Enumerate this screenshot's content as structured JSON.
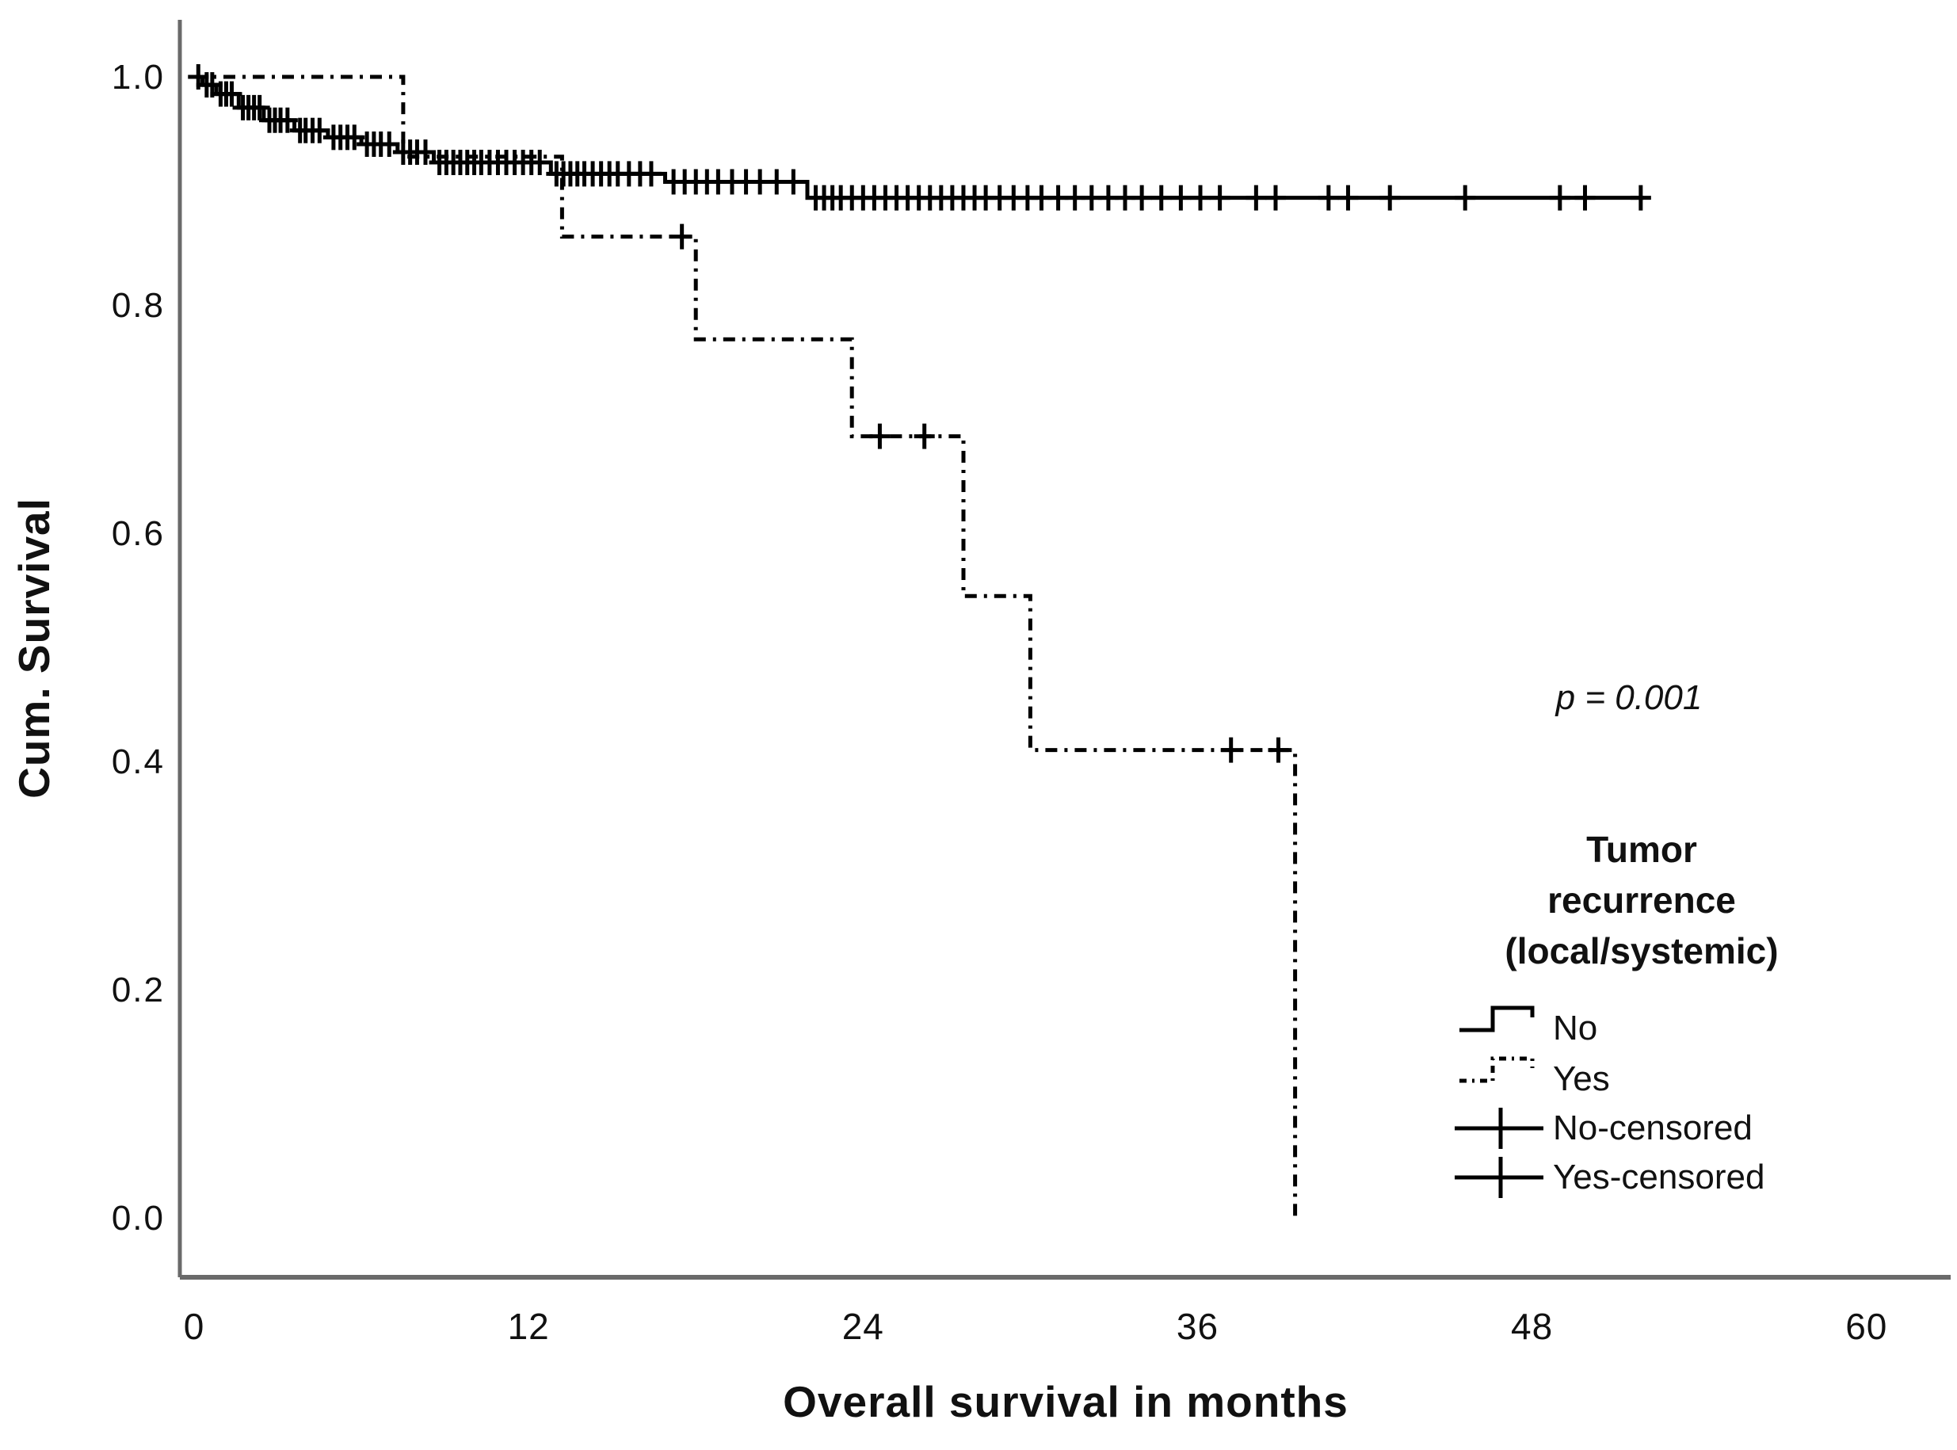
{
  "figure": {
    "background": "#ffffff",
    "p_annotation": "p = 0.001"
  },
  "chart_data": {
    "type": "line",
    "subtype": "kaplan-meier-step",
    "title": "",
    "xlabel": "Overall survival in months",
    "ylabel": "Cum. Survival",
    "xlim": [
      0,
      63
    ],
    "ylim": [
      0.0,
      1.05
    ],
    "grid": false,
    "xticks": {
      "values": [
        0,
        12,
        24,
        36,
        48,
        60
      ],
      "labels": [
        "0",
        "12",
        "24",
        "36",
        "48",
        "60"
      ]
    },
    "yticks": {
      "values": [
        1.0,
        0.8,
        0.6,
        0.4,
        0.2,
        0.0
      ],
      "labels": [
        "1.0",
        "0.8",
        "0.6",
        "0.4",
        "0.2",
        "0.0"
      ]
    },
    "annotation": "p = 0.001",
    "colors": {
      "curve": "#000000",
      "axis": "#6a6a6a",
      "text": "#111111"
    },
    "series": [
      {
        "name": "No",
        "style": "solid",
        "end_month": 52,
        "steps": [
          [
            0,
            1.0
          ],
          [
            0.3,
            0.993
          ],
          [
            0.8,
            0.985
          ],
          [
            1.6,
            0.973
          ],
          [
            2.5,
            0.962
          ],
          [
            3.6,
            0.953
          ],
          [
            4.8,
            0.947
          ],
          [
            6.0,
            0.941
          ],
          [
            7.3,
            0.934
          ],
          [
            8.6,
            0.925
          ],
          [
            12.8,
            0.915
          ],
          [
            16.9,
            0.908
          ],
          [
            22.0,
            0.894
          ]
        ]
      },
      {
        "name": "Yes",
        "style": "dash-dot",
        "end_month": 39.5,
        "steps": [
          [
            0,
            1.0
          ],
          [
            7.5,
            0.93
          ],
          [
            13.2,
            0.86
          ],
          [
            18.0,
            0.77
          ],
          [
            23.6,
            0.685
          ],
          [
            27.6,
            0.545
          ],
          [
            30.0,
            0.41
          ],
          [
            39.5,
            0.0
          ]
        ]
      },
      {
        "name": "No-censored",
        "style": "plus-marks",
        "marks": [
          [
            0.15,
            1.0
          ],
          [
            0.45,
            0.993
          ],
          [
            0.65,
            0.993
          ],
          [
            0.95,
            0.985
          ],
          [
            1.15,
            0.985
          ],
          [
            1.35,
            0.985
          ],
          [
            1.75,
            0.973
          ],
          [
            1.95,
            0.973
          ],
          [
            2.15,
            0.973
          ],
          [
            2.35,
            0.973
          ],
          [
            2.7,
            0.962
          ],
          [
            2.9,
            0.962
          ],
          [
            3.1,
            0.962
          ],
          [
            3.35,
            0.962
          ],
          [
            3.8,
            0.953
          ],
          [
            4.0,
            0.953
          ],
          [
            4.25,
            0.953
          ],
          [
            4.5,
            0.953
          ],
          [
            5.0,
            0.947
          ],
          [
            5.25,
            0.947
          ],
          [
            5.5,
            0.947
          ],
          [
            5.75,
            0.947
          ],
          [
            6.2,
            0.941
          ],
          [
            6.45,
            0.941
          ],
          [
            6.7,
            0.941
          ],
          [
            7.0,
            0.941
          ],
          [
            7.5,
            0.934
          ],
          [
            7.75,
            0.934
          ],
          [
            8.0,
            0.934
          ],
          [
            8.3,
            0.934
          ],
          [
            8.8,
            0.925
          ],
          [
            9.05,
            0.925
          ],
          [
            9.3,
            0.925
          ],
          [
            9.55,
            0.925
          ],
          [
            9.8,
            0.925
          ],
          [
            10.05,
            0.925
          ],
          [
            10.3,
            0.925
          ],
          [
            10.6,
            0.925
          ],
          [
            10.9,
            0.925
          ],
          [
            11.2,
            0.925
          ],
          [
            11.5,
            0.925
          ],
          [
            11.8,
            0.925
          ],
          [
            12.1,
            0.925
          ],
          [
            12.4,
            0.925
          ],
          [
            13.0,
            0.915
          ],
          [
            13.25,
            0.915
          ],
          [
            13.5,
            0.915
          ],
          [
            13.75,
            0.915
          ],
          [
            14.0,
            0.915
          ],
          [
            14.3,
            0.915
          ],
          [
            14.6,
            0.915
          ],
          [
            14.9,
            0.915
          ],
          [
            15.2,
            0.915
          ],
          [
            15.6,
            0.915
          ],
          [
            16.0,
            0.915
          ],
          [
            16.4,
            0.915
          ],
          [
            17.2,
            0.908
          ],
          [
            17.6,
            0.908
          ],
          [
            18.0,
            0.908
          ],
          [
            18.4,
            0.908
          ],
          [
            18.8,
            0.908
          ],
          [
            19.3,
            0.908
          ],
          [
            19.8,
            0.908
          ],
          [
            20.3,
            0.908
          ],
          [
            20.9,
            0.908
          ],
          [
            21.5,
            0.908
          ],
          [
            22.3,
            0.894
          ],
          [
            22.6,
            0.894
          ],
          [
            22.9,
            0.894
          ],
          [
            23.2,
            0.894
          ],
          [
            23.6,
            0.894
          ],
          [
            24.0,
            0.894
          ],
          [
            24.4,
            0.894
          ],
          [
            24.8,
            0.894
          ],
          [
            25.2,
            0.894
          ],
          [
            25.6,
            0.894
          ],
          [
            26.0,
            0.894
          ],
          [
            26.4,
            0.894
          ],
          [
            26.8,
            0.894
          ],
          [
            27.2,
            0.894
          ],
          [
            27.6,
            0.894
          ],
          [
            28.0,
            0.894
          ],
          [
            28.4,
            0.894
          ],
          [
            28.9,
            0.894
          ],
          [
            29.4,
            0.894
          ],
          [
            29.9,
            0.894
          ],
          [
            30.4,
            0.894
          ],
          [
            31.0,
            0.894
          ],
          [
            31.6,
            0.894
          ],
          [
            32.2,
            0.894
          ],
          [
            32.8,
            0.894
          ],
          [
            33.4,
            0.894
          ],
          [
            34.0,
            0.894
          ],
          [
            34.7,
            0.894
          ],
          [
            35.4,
            0.894
          ],
          [
            36.1,
            0.894
          ],
          [
            36.8,
            0.894
          ],
          [
            38.1,
            0.894
          ],
          [
            38.8,
            0.894
          ],
          [
            40.7,
            0.894
          ],
          [
            41.4,
            0.894
          ],
          [
            42.9,
            0.894
          ],
          [
            45.6,
            0.894
          ],
          [
            49.0,
            0.894
          ],
          [
            49.9,
            0.894
          ],
          [
            51.9,
            0.894
          ]
        ]
      },
      {
        "name": "Yes-censored",
        "style": "plus-marks",
        "marks": [
          [
            17.5,
            0.86
          ],
          [
            24.6,
            0.685
          ],
          [
            26.2,
            0.685
          ],
          [
            37.2,
            0.41
          ],
          [
            38.9,
            0.41
          ]
        ]
      }
    ],
    "legend": {
      "position": "lower-right",
      "title_lines": [
        "Tumor",
        "recurrence",
        "(local/systemic)"
      ],
      "entries": [
        {
          "label": "No",
          "key": "step-solid"
        },
        {
          "label": "Yes",
          "key": "step-dashed"
        },
        {
          "label": "No-censored",
          "key": "censor"
        },
        {
          "label": "Yes-censored",
          "key": "censor"
        }
      ]
    }
  }
}
